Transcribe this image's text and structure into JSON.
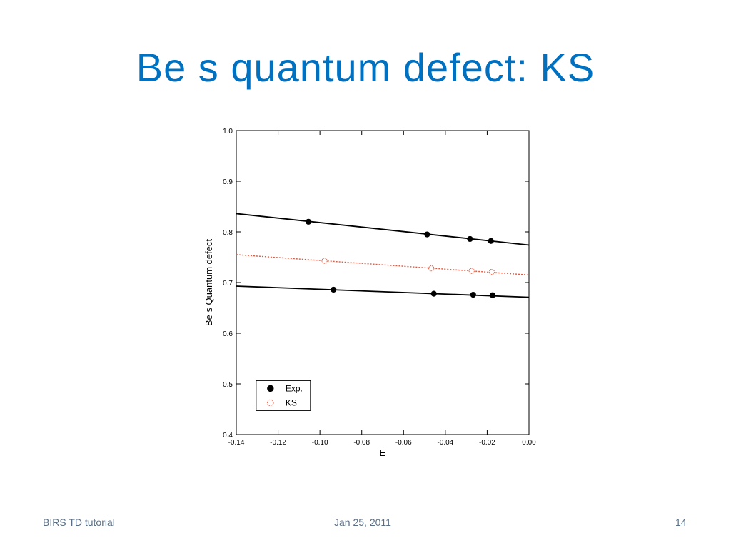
{
  "slide": {
    "title": "Be s quantum defect: KS"
  },
  "footer": {
    "left": "BIRS TD tutorial",
    "center": "Jan 25, 2011",
    "right": "14"
  },
  "colors": {
    "title": "#0070c0",
    "exp": "#000000",
    "ks": "#e8553a",
    "footer": "#5a6f86"
  },
  "chart_data": {
    "type": "scatter",
    "title": "",
    "xlabel": "E",
    "ylabel": "Be s Quantum defect",
    "xlim": [
      -0.14,
      0.0
    ],
    "ylim": [
      0.4,
      1.0
    ],
    "x_ticks": [
      -0.14,
      -0.12,
      -0.1,
      -0.08,
      -0.06,
      -0.04,
      -0.02,
      0.0
    ],
    "x_tick_labels": [
      "-0.14",
      "-0.12",
      "-0.10",
      "-0.08",
      "-0.06",
      "-0.04",
      "-0.02",
      "0.00"
    ],
    "y_ticks": [
      0.4,
      0.5,
      0.6,
      0.7,
      0.8,
      0.9,
      1.0
    ],
    "y_tick_labels": [
      "0.4",
      "0.5",
      "0.6",
      "0.7",
      "0.8",
      "0.9",
      "1.0"
    ],
    "grid": false,
    "legend_position": "bottom-left",
    "legend": [
      {
        "label": "Exp.",
        "marker": "filled-circle",
        "color": "#000000"
      },
      {
        "label": "KS",
        "marker": "open-circle",
        "color": "#e8553a"
      }
    ],
    "series": [
      {
        "name": "Exp.",
        "group": "upper",
        "marker": "filled",
        "color": "#000000",
        "x": [
          -0.1055,
          -0.0487,
          -0.0282,
          -0.0182
        ],
        "y": [
          0.82,
          0.795,
          0.786,
          0.782
        ],
        "fit": {
          "x": [
            -0.14,
            0.0
          ],
          "y": [
            0.836,
            0.774
          ],
          "style": "solid"
        }
      },
      {
        "name": "KS",
        "group": "middle",
        "marker": "open",
        "color": "#e8553a",
        "x": [
          -0.0978,
          -0.0467,
          -0.0274,
          -0.0178
        ],
        "y": [
          0.743,
          0.728,
          0.723,
          0.721
        ],
        "fit": {
          "x": [
            -0.14,
            0.0
          ],
          "y": [
            0.755,
            0.715
          ],
          "style": "dotted"
        }
      },
      {
        "name": "Exp.",
        "group": "lower",
        "marker": "filled",
        "color": "#000000",
        "x": [
          -0.0935,
          -0.0455,
          -0.0267,
          -0.0174
        ],
        "y": [
          0.686,
          0.678,
          0.676,
          0.675
        ],
        "fit": {
          "x": [
            -0.14,
            0.0
          ],
          "y": [
            0.693,
            0.671
          ],
          "style": "solid"
        }
      }
    ]
  }
}
